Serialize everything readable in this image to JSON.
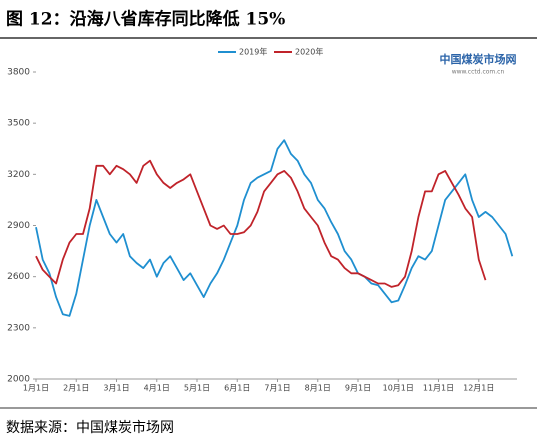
{
  "header": {
    "title": "图 12：沿海八省库存同比降低 15%"
  },
  "chart_data": {
    "type": "line",
    "watermark": {
      "brand": "中国煤炭市场网",
      "site": "www.cctd.com.cn"
    },
    "categories": [
      "1月1日",
      null,
      null,
      null,
      null,
      null,
      "2月1日",
      null,
      null,
      null,
      null,
      null,
      "3月1日",
      null,
      null,
      null,
      null,
      null,
      "4月1日",
      null,
      null,
      null,
      null,
      null,
      "5月1日",
      null,
      null,
      null,
      null,
      null,
      "6月1日",
      null,
      null,
      null,
      null,
      null,
      "7月1日",
      null,
      null,
      null,
      null,
      null,
      "8月1日",
      null,
      null,
      null,
      null,
      null,
      "9月1日",
      null,
      null,
      null,
      null,
      null,
      "10月1日",
      null,
      null,
      null,
      null,
      null,
      "11月1日",
      null,
      null,
      null,
      null,
      null,
      "12月1日",
      null,
      null,
      null,
      null,
      null
    ],
    "series": [
      {
        "name": "2019年",
        "color": "#1f8fd0",
        "values": [
          2890,
          2700,
          2620,
          2480,
          2380,
          2370,
          2500,
          2700,
          2900,
          3050,
          2950,
          2850,
          2800,
          2850,
          2720,
          2680,
          2650,
          2700,
          2600,
          2680,
          2720,
          2650,
          2580,
          2620,
          2550,
          2480,
          2560,
          2620,
          2700,
          2800,
          2900,
          3050,
          3150,
          3180,
          3200,
          3220,
          3350,
          3400,
          3320,
          3280,
          3200,
          3150,
          3050,
          3000,
          2920,
          2850,
          2750,
          2700,
          2620,
          2600,
          2560,
          2550,
          2500,
          2450,
          2460,
          2550,
          2650,
          2720,
          2700,
          2750,
          2900,
          3050,
          3100,
          3150,
          3200,
          3050,
          2950,
          2980,
          2950,
          2900,
          2850,
          2720
        ]
      },
      {
        "name": "2020年",
        "color": "#c0232a",
        "values": [
          2720,
          2640,
          2600,
          2560,
          2700,
          2800,
          2850,
          2850,
          3000,
          3250,
          3250,
          3200,
          3250,
          3230,
          3200,
          3150,
          3250,
          3280,
          3200,
          3150,
          3120,
          3150,
          3170,
          3200,
          3100,
          3000,
          2900,
          2880,
          2900,
          2850,
          2850,
          2860,
          2900,
          2980,
          3100,
          3150,
          3200,
          3220,
          3180,
          3100,
          3000,
          2950,
          2900,
          2800,
          2720,
          2700,
          2650,
          2620,
          2620,
          2600,
          2580,
          2560,
          2560,
          2540,
          2550,
          2600,
          2750,
          2950,
          3100,
          3100,
          3200,
          3220,
          3150,
          3080,
          3000,
          2950,
          2700,
          2580,
          null,
          null,
          null,
          null
        ]
      }
    ],
    "ylim": [
      2000,
      3800
    ],
    "yticks": [
      2000,
      2300,
      2600,
      2900,
      3200,
      3500,
      3800
    ]
  },
  "footer": {
    "source": "数据来源：中国煤炭市场网"
  }
}
